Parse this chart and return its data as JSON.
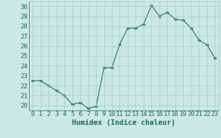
{
  "x": [
    0,
    1,
    2,
    3,
    4,
    5,
    6,
    7,
    8,
    9,
    10,
    11,
    12,
    13,
    14,
    15,
    16,
    17,
    18,
    19,
    20,
    21,
    22,
    23
  ],
  "y": [
    22.5,
    22.5,
    22.0,
    21.5,
    21.0,
    20.1,
    20.3,
    19.7,
    19.9,
    23.8,
    23.8,
    26.2,
    27.8,
    27.8,
    28.2,
    30.1,
    29.0,
    29.4,
    28.7,
    28.6,
    27.8,
    26.6,
    26.1,
    24.8
  ],
  "line_color": "#1a6b5a",
  "marker": "D",
  "markersize": 2.0,
  "linewidth": 0.8,
  "xlabel": "Humidex (Indice chaleur)",
  "xlim": [
    -0.5,
    23.5
  ],
  "ylim": [
    19.5,
    30.5
  ],
  "yticks": [
    20,
    21,
    22,
    23,
    24,
    25,
    26,
    27,
    28,
    29,
    30
  ],
  "xticks": [
    0,
    1,
    2,
    3,
    4,
    5,
    6,
    7,
    8,
    9,
    10,
    11,
    12,
    13,
    14,
    15,
    16,
    17,
    18,
    19,
    20,
    21,
    22,
    23
  ],
  "bg_color": "#cce8e4",
  "grid_color": "#a0ccc8",
  "font_color": "#1a6b5a",
  "tick_fontsize": 6.5,
  "xlabel_fontsize": 7.5
}
